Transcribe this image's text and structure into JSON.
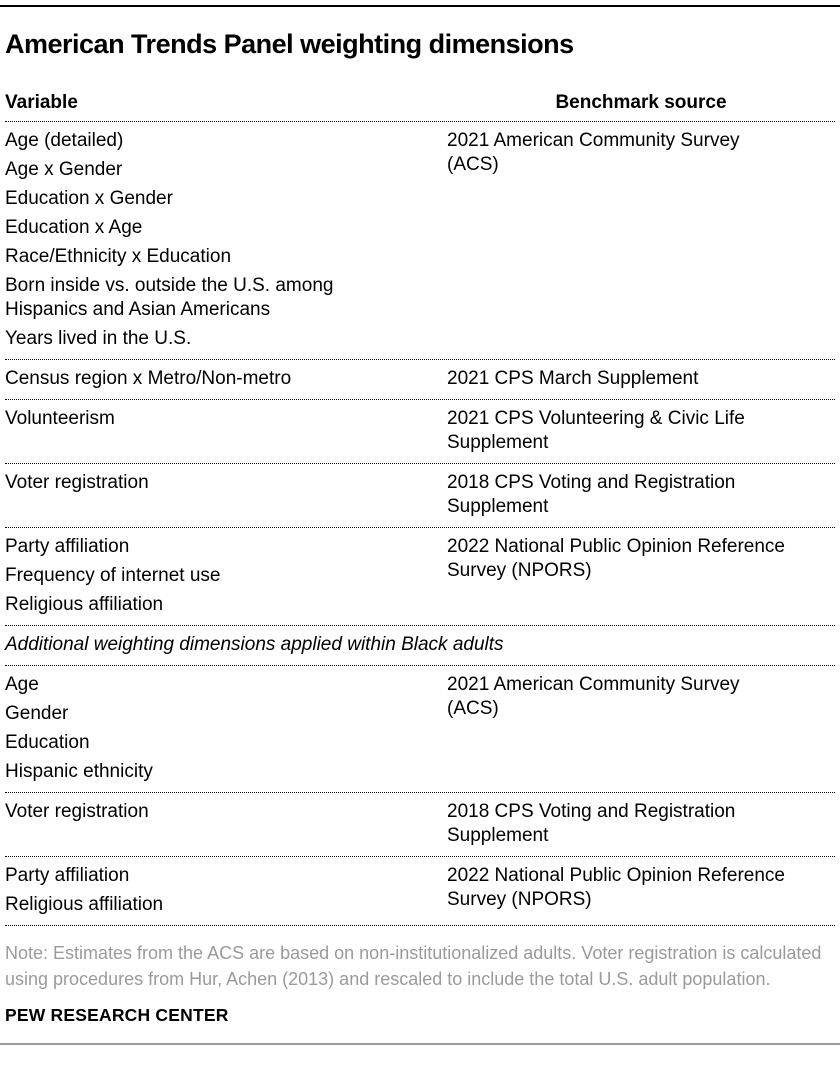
{
  "title": "American Trends Panel weighting dimensions",
  "columns": {
    "variable": "Variable",
    "source": "Benchmark source"
  },
  "table": {
    "main_sections": [
      {
        "variables": [
          "Age (detailed)",
          "Age x Gender",
          "Education x Gender",
          "Education x Age",
          "Race/Ethnicity x Education",
          "Born inside vs. outside the U.S. among Hispanics and Asian Americans",
          "Years lived in the U.S."
        ],
        "source": "2021 American Community Survey (ACS)"
      },
      {
        "variables": [
          "Census region x Metro/Non-metro"
        ],
        "source": "2021 CPS March Supplement"
      },
      {
        "variables": [
          "Volunteerism"
        ],
        "source": "2021 CPS Volunteering & Civic Life Supplement"
      },
      {
        "variables": [
          "Voter registration"
        ],
        "source": "2018 CPS Voting and Registration Supplement"
      },
      {
        "variables": [
          "Party affiliation",
          "Frequency of internet use",
          "Religious affiliation"
        ],
        "source": "2022 National Public Opinion Reference Survey (NPORS)"
      }
    ],
    "subsection_header": "Additional weighting dimensions applied within Black adults",
    "black_adult_sections": [
      {
        "variables": [
          "Age",
          "Gender",
          "Education",
          "Hispanic ethnicity"
        ],
        "source": "2021 American Community Survey (ACS)"
      },
      {
        "variables": [
          "Voter registration"
        ],
        "source": "2018 CPS Voting and Registration Supplement"
      },
      {
        "variables": [
          "Party affiliation",
          "Religious affiliation"
        ],
        "source": "2022 National Public Opinion Reference Survey (NPORS)"
      }
    ]
  },
  "note": "Note: Estimates from the ACS are based on non-institutionalized adults. Voter registration is calculated using procedures from Hur, Achen (2013) and rescaled to include the total U.S. adult population.",
  "brand": "PEW RESEARCH CENTER",
  "colors": {
    "body_text": "#000000",
    "note_text": "#9a9a9a",
    "top_rule": "#000000",
    "bottom_rule": "#9a9a9a",
    "divider": "#000000",
    "background": "#ffffff"
  }
}
